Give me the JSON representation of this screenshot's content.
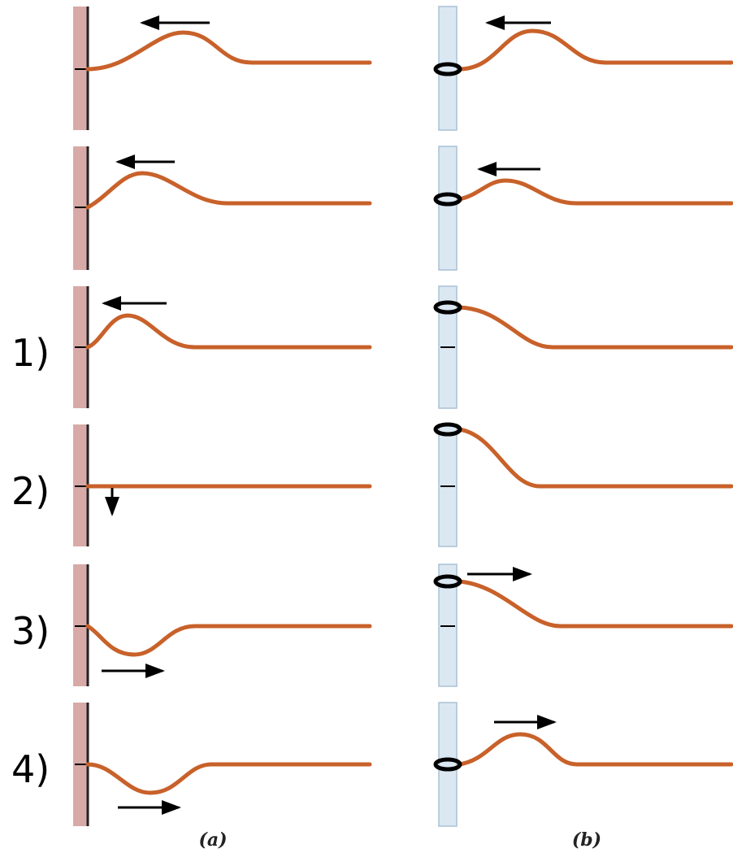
{
  "row_labels": [
    "1)",
    "2)",
    "3)",
    "4)"
  ],
  "panel_labels": [
    "(a)",
    "(b)"
  ]
}
